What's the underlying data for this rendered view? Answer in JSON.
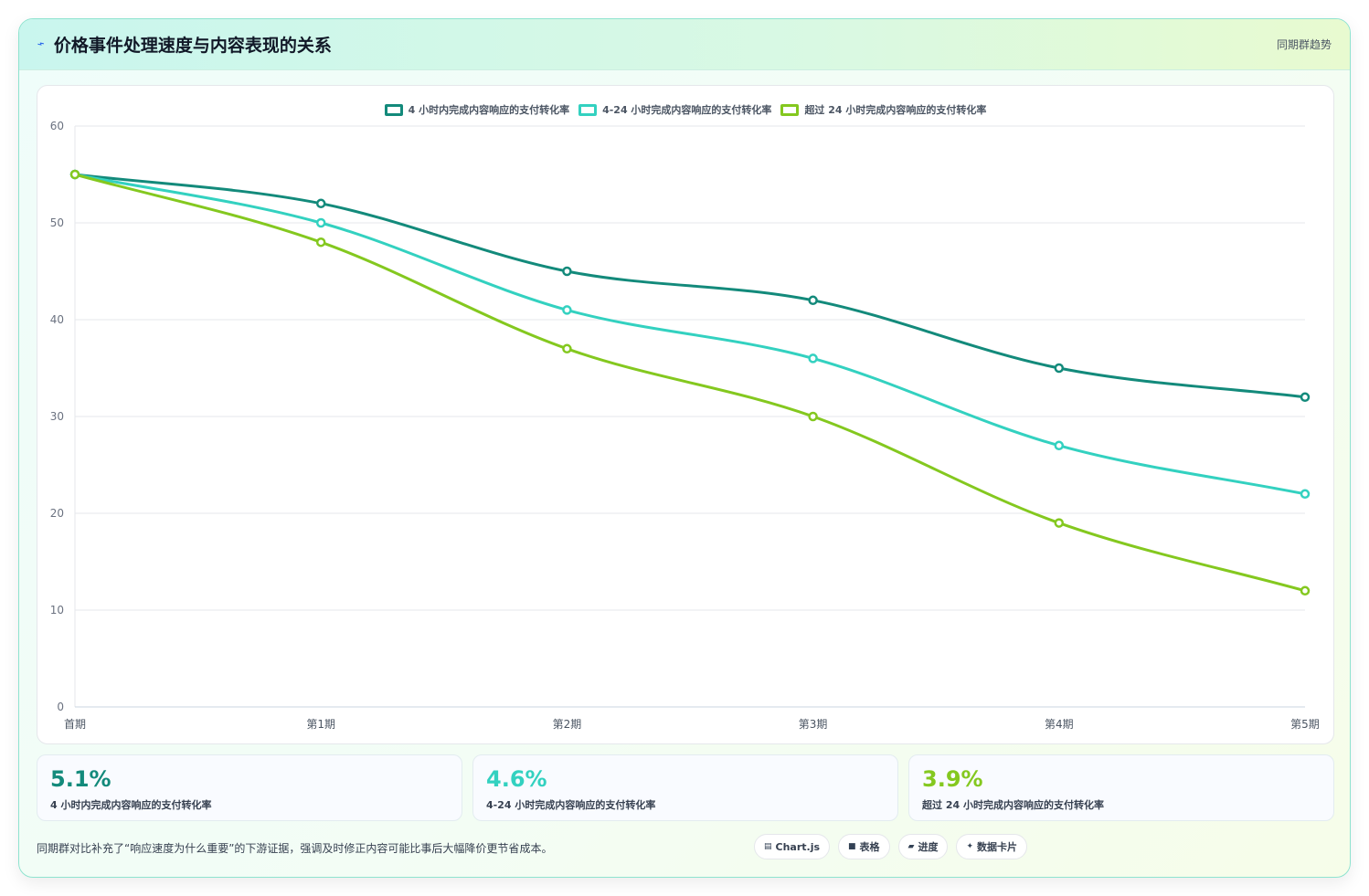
{
  "header": {
    "title": "价格事件处理速度与内容表现的关系",
    "tag": "同期群趋势"
  },
  "chart_data": {
    "type": "line",
    "categories": [
      "首期",
      "第1期",
      "第2期",
      "第3期",
      "第4期",
      "第5期"
    ],
    "ylim": [
      0,
      60
    ],
    "yticks": [
      0,
      10,
      20,
      30,
      40,
      50,
      60
    ],
    "grid": true,
    "legend": "top-center",
    "series": [
      {
        "name": "4 小时内完成内容响应的支付转化率",
        "color": "#138a7b",
        "values": [
          55,
          52,
          45,
          42,
          35,
          32
        ]
      },
      {
        "name": "4-24 小时完成内容响应的支付转化率",
        "color": "#33d1c0",
        "values": [
          55,
          50,
          41,
          36,
          27,
          22
        ]
      },
      {
        "name": "超过 24 小时完成内容响应的支付转化率",
        "color": "#84c81f",
        "values": [
          55,
          48,
          37,
          30,
          19,
          12
        ]
      }
    ]
  },
  "stats": [
    {
      "value": "5.1%",
      "label": "4 小时内完成内容响应的支付转化率",
      "color": "#138a7b"
    },
    {
      "value": "4.6%",
      "label": "4-24 小时完成内容响应的支付转化率",
      "color": "#33d1c0"
    },
    {
      "value": "3.9%",
      "label": "超过 24 小时完成内容响应的支付转化率",
      "color": "#84c81f"
    }
  ],
  "footer": {
    "note": "同期群对比补充了“响应速度为什么重要”的下游证据，强调及时修正内容可能比事后大幅降价更节省成本。",
    "chips": [
      {
        "icon": "chart-icon",
        "glyph": "▤",
        "label": "Chart.js"
      },
      {
        "icon": "table-icon",
        "glyph": "■",
        "label": "表格"
      },
      {
        "icon": "progress-icon",
        "glyph": "▰",
        "label": "进度"
      },
      {
        "icon": "card-icon",
        "glyph": "✦",
        "label": "数据卡片"
      }
    ]
  }
}
